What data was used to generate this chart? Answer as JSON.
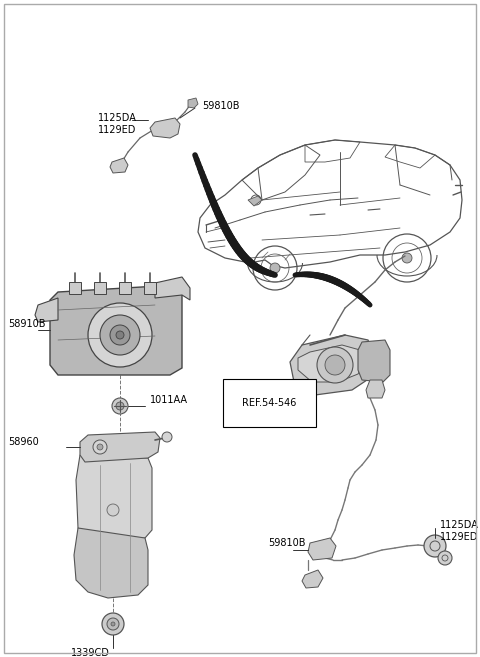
{
  "bg_color": "#ffffff",
  "line_color": "#555555",
  "text_color": "#000000",
  "dark_line": "#222222",
  "grey_fill": "#b8b8b8",
  "grey_fill2": "#cccccc",
  "grey_fill3": "#d5d5d5",
  "labels": {
    "1125DA_1129ED_top": "1125DA\n1129ED",
    "59810B_top": "59810B",
    "58910B": "58910B",
    "1011AA": "1011AA",
    "58960": "58960",
    "1339CD": "1339CD",
    "REF_54_546": "REF.54-546",
    "59810B_bottom": "59810B",
    "1125DA_1129ED_bottom": "1125DA\n1129ED"
  }
}
